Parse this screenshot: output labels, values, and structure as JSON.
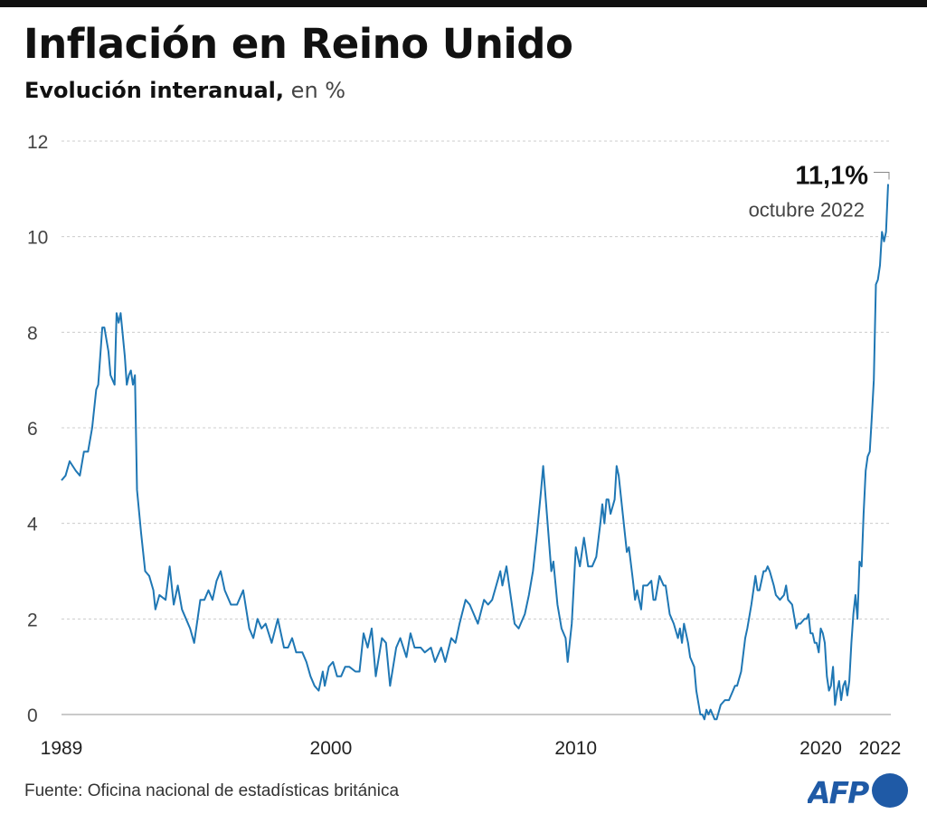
{
  "header": {
    "title": "Inflación en Reino Unido",
    "subtitle_bold": "Evolución interanual,",
    "subtitle_unit": "en %"
  },
  "footer": {
    "source": "Fuente: Oficina nacional de estadísticas británica",
    "logo": "AFP"
  },
  "chart_data": {
    "type": "line",
    "title": "Inflación en Reino Unido",
    "subtitle": "Evolución interanual, en %",
    "ylim": [
      0,
      12
    ],
    "yticks": [
      "0",
      "2",
      "4",
      "6",
      "8",
      "10",
      "12"
    ],
    "xticks": [
      {
        "label": "1989",
        "date": "1989-01"
      },
      {
        "label": "2000",
        "date": "2000-01"
      },
      {
        "label": "2010",
        "date": "2010-01"
      },
      {
        "label": "2020",
        "date": "2020-01"
      },
      {
        "label": "2022",
        "date": "2022-06"
      }
    ],
    "grid": true,
    "color": "#1f77b4",
    "annotation": {
      "value": "11,1%",
      "label": "octubre 2022",
      "date": "2022-10"
    },
    "points": [
      [
        "1989-01",
        4.9
      ],
      [
        "1989-03",
        5.0
      ],
      [
        "1989-05",
        5.3
      ],
      [
        "1989-08",
        5.1
      ],
      [
        "1989-10",
        5.0
      ],
      [
        "1989-12",
        5.5
      ],
      [
        "1990-02",
        5.5
      ],
      [
        "1990-04",
        6.0
      ],
      [
        "1990-06",
        6.8
      ],
      [
        "1990-07",
        6.9
      ],
      [
        "1990-09",
        8.1
      ],
      [
        "1990-10",
        8.1
      ],
      [
        "1990-12",
        7.6
      ],
      [
        "1991-01",
        7.1
      ],
      [
        "1991-03",
        6.9
      ],
      [
        "1991-04",
        8.4
      ],
      [
        "1991-05",
        8.2
      ],
      [
        "1991-06",
        8.4
      ],
      [
        "1991-08",
        7.5
      ],
      [
        "1991-09",
        6.9
      ],
      [
        "1991-10",
        7.1
      ],
      [
        "1991-11",
        7.2
      ],
      [
        "1991-12",
        6.9
      ],
      [
        "1992-01",
        7.1
      ],
      [
        "1992-02",
        4.7
      ],
      [
        "1992-04",
        3.8
      ],
      [
        "1992-06",
        3.0
      ],
      [
        "1992-08",
        2.9
      ],
      [
        "1992-10",
        2.6
      ],
      [
        "1992-11",
        2.2
      ],
      [
        "1993-01",
        2.5
      ],
      [
        "1993-04",
        2.4
      ],
      [
        "1993-06",
        3.1
      ],
      [
        "1993-08",
        2.3
      ],
      [
        "1993-10",
        2.7
      ],
      [
        "1993-12",
        2.2
      ],
      [
        "1994-02",
        2.0
      ],
      [
        "1994-04",
        1.8
      ],
      [
        "1994-06",
        1.5
      ],
      [
        "1994-09",
        2.4
      ],
      [
        "1994-11",
        2.4
      ],
      [
        "1995-01",
        2.6
      ],
      [
        "1995-03",
        2.4
      ],
      [
        "1995-05",
        2.8
      ],
      [
        "1995-07",
        3.0
      ],
      [
        "1995-09",
        2.6
      ],
      [
        "1995-12",
        2.3
      ],
      [
        "1996-03",
        2.3
      ],
      [
        "1996-06",
        2.6
      ],
      [
        "1996-09",
        1.8
      ],
      [
        "1996-11",
        1.6
      ],
      [
        "1997-01",
        2.0
      ],
      [
        "1997-03",
        1.8
      ],
      [
        "1997-05",
        1.9
      ],
      [
        "1997-08",
        1.5
      ],
      [
        "1997-11",
        2.0
      ],
      [
        "1998-02",
        1.4
      ],
      [
        "1998-04",
        1.4
      ],
      [
        "1998-06",
        1.6
      ],
      [
        "1998-08",
        1.3
      ],
      [
        "1998-11",
        1.3
      ],
      [
        "1999-01",
        1.1
      ],
      [
        "1999-03",
        0.8
      ],
      [
        "1999-05",
        0.6
      ],
      [
        "1999-07",
        0.5
      ],
      [
        "1999-09",
        0.9
      ],
      [
        "1999-10",
        0.6
      ],
      [
        "1999-12",
        1.0
      ],
      [
        "2000-02",
        1.1
      ],
      [
        "2000-04",
        0.8
      ],
      [
        "2000-06",
        0.8
      ],
      [
        "2000-08",
        1.0
      ],
      [
        "2000-10",
        1.0
      ],
      [
        "2001-01",
        0.9
      ],
      [
        "2001-03",
        0.9
      ],
      [
        "2001-05",
        1.7
      ],
      [
        "2001-07",
        1.4
      ],
      [
        "2001-09",
        1.8
      ],
      [
        "2001-11",
        0.8
      ],
      [
        "2002-02",
        1.6
      ],
      [
        "2002-04",
        1.5
      ],
      [
        "2002-06",
        0.6
      ],
      [
        "2002-09",
        1.4
      ],
      [
        "2002-11",
        1.6
      ],
      [
        "2003-02",
        1.2
      ],
      [
        "2003-04",
        1.7
      ],
      [
        "2003-06",
        1.4
      ],
      [
        "2003-09",
        1.4
      ],
      [
        "2003-11",
        1.3
      ],
      [
        "2004-02",
        1.4
      ],
      [
        "2004-04",
        1.1
      ],
      [
        "2004-07",
        1.4
      ],
      [
        "2004-09",
        1.1
      ],
      [
        "2004-12",
        1.6
      ],
      [
        "2005-02",
        1.5
      ],
      [
        "2005-04",
        1.9
      ],
      [
        "2005-07",
        2.4
      ],
      [
        "2005-09",
        2.3
      ],
      [
        "2005-11",
        2.1
      ],
      [
        "2006-01",
        1.9
      ],
      [
        "2006-04",
        2.4
      ],
      [
        "2006-06",
        2.3
      ],
      [
        "2006-08",
        2.4
      ],
      [
        "2006-10",
        2.7
      ],
      [
        "2006-12",
        3.0
      ],
      [
        "2007-01",
        2.7
      ],
      [
        "2007-03",
        3.1
      ],
      [
        "2007-05",
        2.5
      ],
      [
        "2007-07",
        1.9
      ],
      [
        "2007-09",
        1.8
      ],
      [
        "2007-12",
        2.1
      ],
      [
        "2008-02",
        2.5
      ],
      [
        "2008-04",
        3.0
      ],
      [
        "2008-06",
        3.8
      ],
      [
        "2008-08",
        4.7
      ],
      [
        "2008-09",
        5.2
      ],
      [
        "2008-11",
        4.1
      ],
      [
        "2009-01",
        3.0
      ],
      [
        "2009-02",
        3.2
      ],
      [
        "2009-04",
        2.3
      ],
      [
        "2009-06",
        1.8
      ],
      [
        "2009-08",
        1.6
      ],
      [
        "2009-09",
        1.1
      ],
      [
        "2009-11",
        1.9
      ],
      [
        "2010-01",
        3.5
      ],
      [
        "2010-03",
        3.1
      ],
      [
        "2010-05",
        3.7
      ],
      [
        "2010-07",
        3.1
      ],
      [
        "2010-09",
        3.1
      ],
      [
        "2010-11",
        3.3
      ],
      [
        "2011-01",
        4.0
      ],
      [
        "2011-02",
        4.4
      ],
      [
        "2011-03",
        4.0
      ],
      [
        "2011-04",
        4.5
      ],
      [
        "2011-05",
        4.5
      ],
      [
        "2011-06",
        4.2
      ],
      [
        "2011-08",
        4.5
      ],
      [
        "2011-09",
        5.2
      ],
      [
        "2011-10",
        5.0
      ],
      [
        "2011-12",
        4.2
      ],
      [
        "2012-02",
        3.4
      ],
      [
        "2012-03",
        3.5
      ],
      [
        "2012-05",
        2.8
      ],
      [
        "2012-06",
        2.4
      ],
      [
        "2012-07",
        2.6
      ],
      [
        "2012-09",
        2.2
      ],
      [
        "2012-10",
        2.7
      ],
      [
        "2012-12",
        2.7
      ],
      [
        "2013-02",
        2.8
      ],
      [
        "2013-03",
        2.4
      ],
      [
        "2013-04",
        2.4
      ],
      [
        "2013-06",
        2.9
      ],
      [
        "2013-08",
        2.7
      ],
      [
        "2013-09",
        2.7
      ],
      [
        "2013-11",
        2.1
      ],
      [
        "2014-01",
        1.9
      ],
      [
        "2014-03",
        1.6
      ],
      [
        "2014-04",
        1.8
      ],
      [
        "2014-05",
        1.5
      ],
      [
        "2014-06",
        1.9
      ],
      [
        "2014-08",
        1.5
      ],
      [
        "2014-09",
        1.2
      ],
      [
        "2014-11",
        1.0
      ],
      [
        "2014-12",
        0.5
      ],
      [
        "2015-02",
        0.0
      ],
      [
        "2015-03",
        0.0
      ],
      [
        "2015-04",
        -0.1
      ],
      [
        "2015-05",
        0.1
      ],
      [
        "2015-06",
        0.0
      ],
      [
        "2015-07",
        0.1
      ],
      [
        "2015-09",
        -0.1
      ],
      [
        "2015-10",
        -0.1
      ],
      [
        "2015-12",
        0.2
      ],
      [
        "2016-02",
        0.3
      ],
      [
        "2016-04",
        0.3
      ],
      [
        "2016-06",
        0.5
      ],
      [
        "2016-07",
        0.6
      ],
      [
        "2016-08",
        0.6
      ],
      [
        "2016-10",
        0.9
      ],
      [
        "2016-12",
        1.6
      ],
      [
        "2017-01",
        1.8
      ],
      [
        "2017-03",
        2.3
      ],
      [
        "2017-05",
        2.9
      ],
      [
        "2017-06",
        2.6
      ],
      [
        "2017-07",
        2.6
      ],
      [
        "2017-09",
        3.0
      ],
      [
        "2017-10",
        3.0
      ],
      [
        "2017-11",
        3.1
      ],
      [
        "2017-12",
        3.0
      ],
      [
        "2018-02",
        2.7
      ],
      [
        "2018-03",
        2.5
      ],
      [
        "2018-05",
        2.4
      ],
      [
        "2018-07",
        2.5
      ],
      [
        "2018-08",
        2.7
      ],
      [
        "2018-09",
        2.4
      ],
      [
        "2018-11",
        2.3
      ],
      [
        "2019-01",
        1.8
      ],
      [
        "2019-02",
        1.9
      ],
      [
        "2019-03",
        1.9
      ],
      [
        "2019-05",
        2.0
      ],
      [
        "2019-06",
        2.0
      ],
      [
        "2019-07",
        2.1
      ],
      [
        "2019-08",
        1.7
      ],
      [
        "2019-09",
        1.7
      ],
      [
        "2019-10",
        1.5
      ],
      [
        "2019-11",
        1.5
      ],
      [
        "2019-12",
        1.3
      ],
      [
        "2020-01",
        1.8
      ],
      [
        "2020-02",
        1.7
      ],
      [
        "2020-03",
        1.5
      ],
      [
        "2020-04",
        0.8
      ],
      [
        "2020-05",
        0.5
      ],
      [
        "2020-06",
        0.6
      ],
      [
        "2020-07",
        1.0
      ],
      [
        "2020-08",
        0.2
      ],
      [
        "2020-09",
        0.5
      ],
      [
        "2020-10",
        0.7
      ],
      [
        "2020-11",
        0.3
      ],
      [
        "2020-12",
        0.6
      ],
      [
        "2021-01",
        0.7
      ],
      [
        "2021-02",
        0.4
      ],
      [
        "2021-03",
        0.7
      ],
      [
        "2021-04",
        1.5
      ],
      [
        "2021-05",
        2.1
      ],
      [
        "2021-06",
        2.5
      ],
      [
        "2021-07",
        2.0
      ],
      [
        "2021-08",
        3.2
      ],
      [
        "2021-09",
        3.1
      ],
      [
        "2021-10",
        4.2
      ],
      [
        "2021-11",
        5.1
      ],
      [
        "2021-12",
        5.4
      ],
      [
        "2022-01",
        5.5
      ],
      [
        "2022-02",
        6.2
      ],
      [
        "2022-03",
        7.0
      ],
      [
        "2022-04",
        9.0
      ],
      [
        "2022-05",
        9.1
      ],
      [
        "2022-06",
        9.4
      ],
      [
        "2022-07",
        10.1
      ],
      [
        "2022-08",
        9.9
      ],
      [
        "2022-09",
        10.1
      ],
      [
        "2022-10",
        11.1
      ]
    ]
  }
}
